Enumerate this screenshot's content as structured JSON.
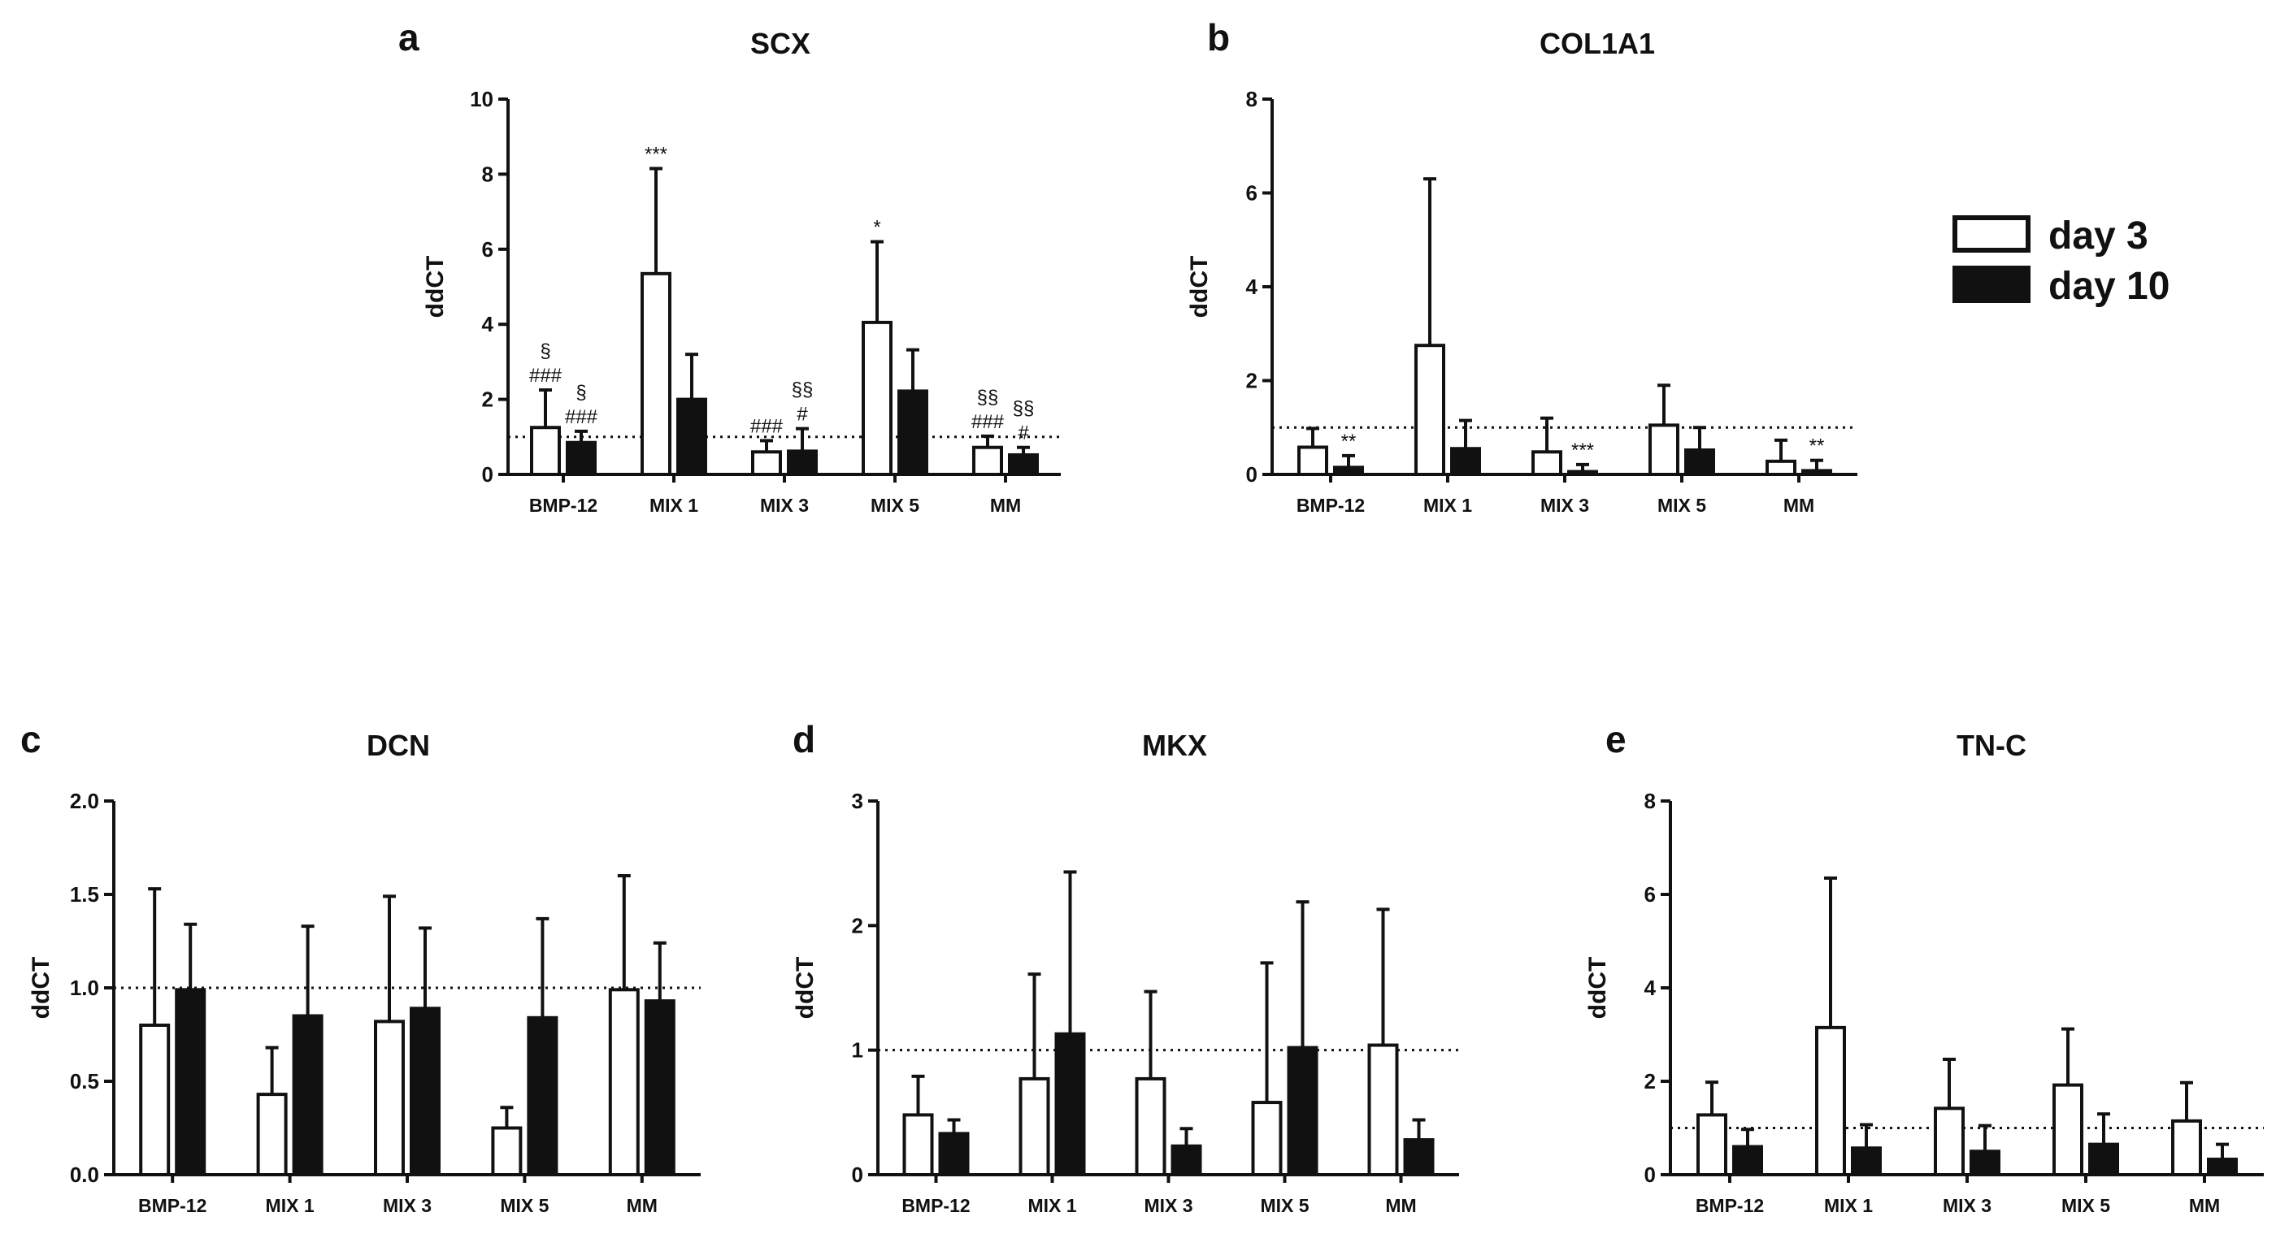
{
  "legend": [
    {
      "label": "day 3",
      "fill": "#ffffff"
    },
    {
      "label": "day 10",
      "fill": "#111111"
    }
  ],
  "colors": {
    "axis": "#111111",
    "day3_fill": "#ffffff",
    "day10_fill": "#111111",
    "reference_line": "#111111"
  },
  "chart_data": [
    {
      "panel": "a",
      "title": "SCX",
      "type": "bar",
      "ylabel": "ddCT",
      "ylim": [
        0,
        10
      ],
      "yticks": [
        "0",
        "2",
        "4",
        "6",
        "8",
        "10"
      ],
      "reference_line": 1,
      "categories": [
        "BMP-12",
        "MIX 1",
        "MIX 3",
        "MIX 5",
        "MM"
      ],
      "series": [
        {
          "name": "day 3",
          "values": [
            1.25,
            5.35,
            0.6,
            4.05,
            0.72
          ],
          "errors": [
            1.0,
            2.8,
            0.3,
            2.15,
            0.3
          ],
          "annotations": [
            [
              "§",
              "###"
            ],
            [
              "***"
            ],
            [
              "###"
            ],
            [
              "*"
            ],
            [
              "§§",
              "###"
            ]
          ]
        },
        {
          "name": "day 10",
          "values": [
            0.85,
            2.0,
            0.62,
            2.22,
            0.52
          ],
          "errors": [
            0.3,
            1.2,
            0.6,
            1.1,
            0.2
          ],
          "annotations": [
            [
              "§",
              "###"
            ],
            [],
            [
              "§§",
              "#"
            ],
            [],
            [
              "§§",
              "#"
            ]
          ]
        }
      ]
    },
    {
      "panel": "b",
      "title": "COL1A1",
      "type": "bar",
      "ylabel": "ddCT",
      "ylim": [
        0,
        8
      ],
      "yticks": [
        "0",
        "2",
        "4",
        "6",
        "8"
      ],
      "reference_line": 1,
      "categories": [
        "BMP-12",
        "MIX 1",
        "MIX 3",
        "MIX 5",
        "MM"
      ],
      "series": [
        {
          "name": "day 3",
          "values": [
            0.58,
            2.75,
            0.48,
            1.05,
            0.28
          ],
          "errors": [
            0.4,
            3.55,
            0.72,
            0.85,
            0.45
          ],
          "annotations": [
            [],
            [],
            [],
            [],
            []
          ]
        },
        {
          "name": "day 10",
          "values": [
            0.15,
            0.55,
            0.06,
            0.52,
            0.08
          ],
          "errors": [
            0.25,
            0.6,
            0.15,
            0.48,
            0.22
          ],
          "annotations": [
            [
              "**"
            ],
            [],
            [
              "***"
            ],
            [],
            [
              "**"
            ]
          ]
        }
      ]
    },
    {
      "panel": "c",
      "title": "DCN",
      "type": "bar",
      "ylabel": "ddCT",
      "ylim": [
        0,
        2
      ],
      "yticks": [
        "0.0",
        "0.5",
        "1.0",
        "1.5",
        "2.0"
      ],
      "reference_line": 1,
      "categories": [
        "BMP-12",
        "MIX 1",
        "MIX 3",
        "MIX 5",
        "MM"
      ],
      "series": [
        {
          "name": "day 3",
          "values": [
            0.8,
            0.43,
            0.82,
            0.25,
            0.99
          ],
          "errors": [
            0.73,
            0.25,
            0.67,
            0.11,
            0.61
          ],
          "annotations": [
            [],
            [],
            [],
            [],
            []
          ]
        },
        {
          "name": "day 10",
          "values": [
            0.99,
            0.85,
            0.89,
            0.84,
            0.93
          ],
          "errors": [
            0.35,
            0.48,
            0.43,
            0.53,
            0.31
          ],
          "annotations": [
            [],
            [],
            [],
            [],
            []
          ]
        }
      ]
    },
    {
      "panel": "d",
      "title": "MKX",
      "type": "bar",
      "ylabel": "ddCT",
      "ylim": [
        0,
        3
      ],
      "yticks": [
        "0",
        "1",
        "2",
        "3"
      ],
      "reference_line": 1,
      "categories": [
        "BMP-12",
        "MIX 1",
        "MIX 3",
        "MIX 5",
        "MM"
      ],
      "series": [
        {
          "name": "day 3",
          "values": [
            0.48,
            0.77,
            0.77,
            0.58,
            1.04
          ],
          "errors": [
            0.31,
            0.84,
            0.7,
            1.12,
            1.09
          ],
          "annotations": [
            [],
            [],
            [],
            [],
            []
          ]
        },
        {
          "name": "day 10",
          "values": [
            0.33,
            1.13,
            0.23,
            1.02,
            0.28
          ],
          "errors": [
            0.11,
            1.3,
            0.14,
            1.17,
            0.16
          ],
          "annotations": [
            [],
            [],
            [],
            [],
            []
          ]
        }
      ]
    },
    {
      "panel": "e",
      "title": "TN-C",
      "type": "bar",
      "ylabel": "ddCT",
      "ylim": [
        0,
        8
      ],
      "yticks": [
        "0",
        "2",
        "4",
        "6",
        "8"
      ],
      "reference_line": 1,
      "categories": [
        "BMP-12",
        "MIX 1",
        "MIX 3",
        "MIX 5",
        "MM"
      ],
      "series": [
        {
          "name": "day 3",
          "values": [
            1.28,
            3.15,
            1.42,
            1.92,
            1.15
          ],
          "errors": [
            0.7,
            3.2,
            1.05,
            1.2,
            0.82
          ],
          "annotations": [
            [],
            [],
            [],
            [],
            []
          ]
        },
        {
          "name": "day 10",
          "values": [
            0.6,
            0.57,
            0.5,
            0.65,
            0.33
          ],
          "errors": [
            0.37,
            0.5,
            0.55,
            0.65,
            0.32
          ],
          "annotations": [
            [],
            [],
            [],
            [],
            []
          ]
        }
      ]
    }
  ]
}
